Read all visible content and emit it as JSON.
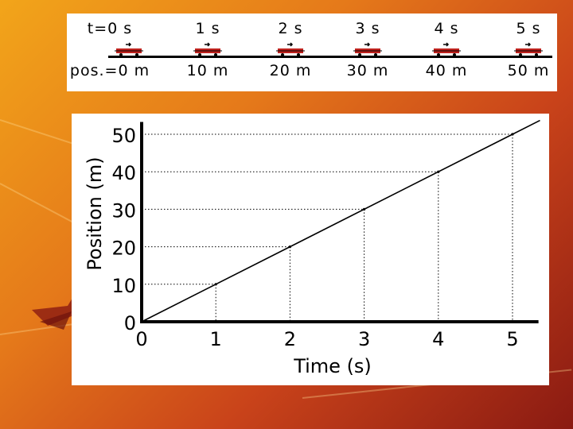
{
  "timeline": {
    "time_labels": [
      "t=0 s",
      "1 s",
      "2 s",
      "3 s",
      "4 s",
      "5 s"
    ],
    "position_labels": [
      "pos.=0 m",
      "10 m",
      "20 m",
      "30 m",
      "40 m",
      "50 m"
    ]
  },
  "colors": {
    "cart": "#c0221e",
    "line": "#000000",
    "background_accent": "#e5791a"
  },
  "chart_data": {
    "type": "line",
    "x": [
      0,
      1,
      2,
      3,
      4,
      5
    ],
    "y": [
      0,
      10,
      20,
      30,
      40,
      50
    ],
    "xlabel": "Time (s)",
    "ylabel": "Position (m)",
    "xlim": [
      0,
      5.35
    ],
    "ylim": [
      0,
      52
    ],
    "xticks": [
      "0",
      "1",
      "2",
      "3",
      "4",
      "5"
    ],
    "yticks": [
      "0",
      "10",
      "20",
      "30",
      "40",
      "50"
    ],
    "guide_lines": "dotted",
    "grid": false
  }
}
